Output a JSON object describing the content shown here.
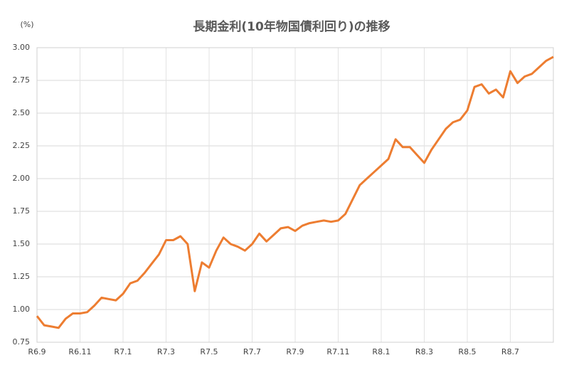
{
  "chart_data": {
    "type": "line",
    "title": "長期金利(10年物国債利回り)の推移",
    "y_unit": "(%)",
    "categories": [
      "R6.9",
      null,
      null,
      null,
      null,
      null,
      "R6.11",
      null,
      null,
      null,
      null,
      null,
      "R7.1",
      null,
      null,
      null,
      null,
      null,
      "R7.3",
      null,
      null,
      null,
      null,
      null,
      "R7.5",
      null,
      null,
      null,
      null,
      null,
      "R7.7",
      null,
      null,
      null,
      null,
      null,
      "R7.9",
      null,
      null,
      null,
      null,
      null,
      "R7.11",
      null,
      null,
      null,
      null,
      null,
      "R8.1",
      null,
      null,
      null,
      null,
      null,
      "R8.3",
      null,
      null,
      null,
      null,
      null,
      "R8.5",
      null,
      null,
      null,
      null,
      null,
      "R8.7",
      null,
      null,
      null,
      null,
      null,
      null
    ],
    "series": [
      {
        "name": "長期金利",
        "color": "#ed7d31",
        "values": [
          0.95,
          0.88,
          0.87,
          0.86,
          0.93,
          0.97,
          0.97,
          0.98,
          1.03,
          1.09,
          1.08,
          1.07,
          1.12,
          1.2,
          1.22,
          1.28,
          1.35,
          1.42,
          1.53,
          1.53,
          1.56,
          1.5,
          1.14,
          1.36,
          1.32,
          1.45,
          1.55,
          1.5,
          1.48,
          1.45,
          1.5,
          1.58,
          1.52,
          1.57,
          1.62,
          1.63,
          1.6,
          1.64,
          1.66,
          1.67,
          1.68,
          1.67,
          1.68,
          1.73,
          1.84,
          1.95,
          2.0,
          2.05,
          2.1,
          2.15,
          2.3,
          2.24,
          2.24,
          2.18,
          2.12,
          2.22,
          2.3,
          2.38,
          2.43,
          2.45,
          2.52,
          2.7,
          2.72,
          2.65,
          2.68,
          2.62,
          2.82,
          2.73,
          2.78,
          2.8,
          2.85,
          2.9,
          2.93
        ]
      }
    ],
    "ylim": [
      0.75,
      3
    ],
    "yticks": [
      0.75,
      {
        "value": 1,
        "label": "1.00"
      },
      1.25,
      {
        "value": 1.5,
        "label": "1.50"
      },
      1.75,
      {
        "value": 2,
        "label": "2.00"
      },
      2.25,
      {
        "value": 2.5,
        "label": "2.50"
      },
      2.75,
      {
        "value": 3,
        "label": "3.00"
      }
    ],
    "grid": true
  }
}
